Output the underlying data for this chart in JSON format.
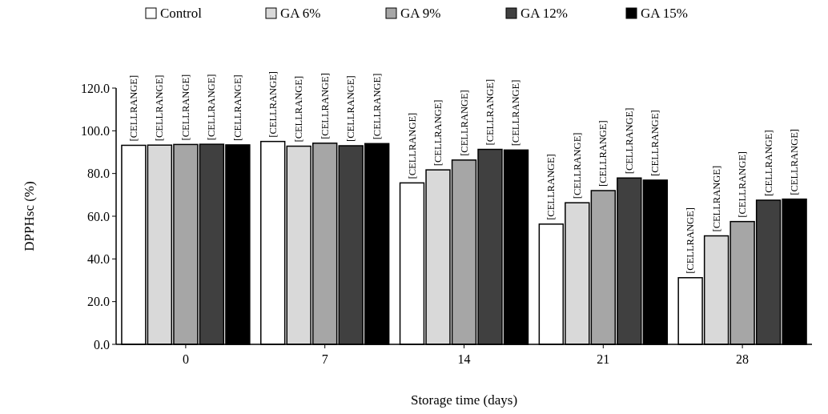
{
  "chart_data": {
    "type": "bar",
    "xlabel": "Storage time (days)",
    "ylabel": "DPPHsc  (%)",
    "categories": [
      "0",
      "7",
      "14",
      "21",
      "28"
    ],
    "ylim": [
      0,
      120
    ],
    "yticks": [
      {
        "value": 0,
        "label": "0.0"
      },
      {
        "value": 20,
        "label": "20.0"
      },
      {
        "value": 40,
        "label": "40.0"
      },
      {
        "value": 60,
        "label": "60.0"
      },
      {
        "value": 80,
        "label": "80.0"
      },
      {
        "value": 100,
        "label": "100.0"
      },
      {
        "value": 120,
        "label": "120.0"
      }
    ],
    "legend": "top",
    "series": [
      {
        "name": "Control",
        "color": "#ffffff",
        "values": [
          93.2,
          95.0,
          75.6,
          56.3,
          31.2
        ],
        "value_labels": [
          "[CELLRANGE]",
          "[CELLRANGE]",
          "[CELLRANGE]",
          "[CELLRANGE]",
          "[CELLRANGE]"
        ]
      },
      {
        "name": "GA 6%",
        "color": "#d9d9d9",
        "values": [
          93.3,
          92.8,
          81.7,
          66.3,
          50.8
        ],
        "value_labels": [
          "[CELLRANGE]",
          "[CELLRANGE]",
          "[CELLRANGE]",
          "[CELLRANGE]",
          "[CELLRANGE]"
        ]
      },
      {
        "name": "GA 9%",
        "color": "#a6a6a6",
        "values": [
          93.6,
          94.2,
          86.3,
          72.0,
          57.5
        ],
        "value_labels": [
          "[CELLRANGE]",
          "[CELLRANGE]",
          "[CELLRANGE]",
          "[CELLRANGE]",
          "[CELLRANGE]"
        ]
      },
      {
        "name": "GA 12%",
        "color": "#404040",
        "values": [
          93.7,
          93.0,
          91.3,
          77.9,
          67.5
        ],
        "value_labels": [
          "[CELLRANGE]",
          "[CELLRANGE]",
          "[CELLRANGE]",
          "[CELLRANGE]",
          "[CELLRANGE]"
        ]
      },
      {
        "name": "GA 15%",
        "color": "#000000",
        "values": [
          93.4,
          94.0,
          91.0,
          76.9,
          68.0
        ],
        "value_labels": [
          "[CELLRANGE]",
          "[CELLRANGE]",
          "[CELLRANGE]",
          "[CELLRANGE]",
          "[CELLRANGE]"
        ]
      }
    ]
  }
}
